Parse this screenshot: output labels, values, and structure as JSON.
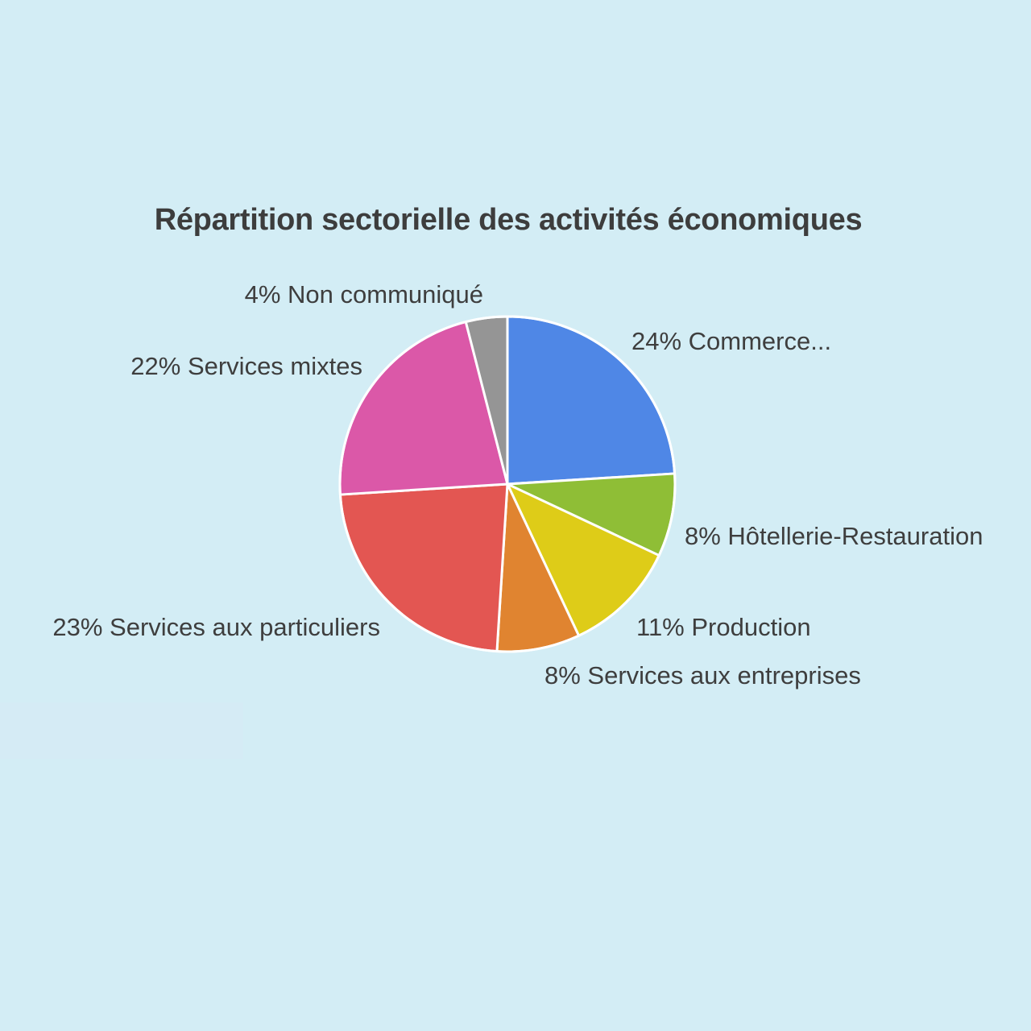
{
  "chart_data": {
    "type": "pie",
    "title": "Répartition sectorielle des activités économiques",
    "slices": [
      {
        "label": "24% Commerce...",
        "value": 24,
        "color": "#4f87e6"
      },
      {
        "label": "8% Hôtellerie-Restauration",
        "value": 8,
        "color": "#8fbe36"
      },
      {
        "label": "11% Production",
        "value": 11,
        "color": "#decc18"
      },
      {
        "label": "8% Services aux entreprises",
        "value": 8,
        "color": "#e08430"
      },
      {
        "label": "23% Services aux particuliers",
        "value": 23,
        "color": "#e35652"
      },
      {
        "label": "22% Services mixtes",
        "value": 22,
        "color": "#db58a8"
      },
      {
        "label": "4% Non communiqué",
        "value": 4,
        "color": "#959595"
      }
    ]
  }
}
